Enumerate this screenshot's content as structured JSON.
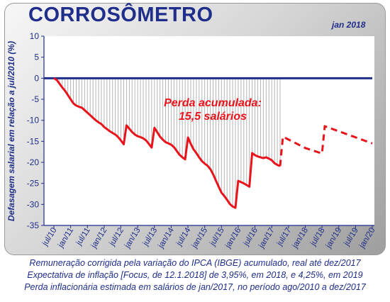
{
  "header": {
    "title": "CORROSÔMETRO",
    "date": "jan 2018"
  },
  "captions": [
    "Remuneração corrigida pela variação do IPCA (IBGE) acumulado, real até dez/2017",
    "Expectativa de inflação [Focus, de 12.1.2018] de 3,95%, em 2018, e 4,25%, em 2019",
    "Perda inflacionária estimada em salários de jan/2017, no período ago/2010 a dez/2017"
  ],
  "chart_data": {
    "type": "line",
    "ylabel": "Defasagem salarial em relação a jul/2010 (%)",
    "xlabel": "",
    "ylim": [
      -35,
      10
    ],
    "yticks": [
      10,
      5,
      0,
      -5,
      -10,
      -15,
      -20,
      -25,
      -30,
      -35
    ],
    "xlim": [
      0,
      114
    ],
    "xticks": [
      {
        "pos": 0,
        "label": "jul/10"
      },
      {
        "pos": 6,
        "label": "jan/11"
      },
      {
        "pos": 12,
        "label": "jul/11"
      },
      {
        "pos": 18,
        "label": "jan/12"
      },
      {
        "pos": 24,
        "label": "jul/12"
      },
      {
        "pos": 30,
        "label": "jan/13"
      },
      {
        "pos": 36,
        "label": "jul/13"
      },
      {
        "pos": 42,
        "label": "jan/14"
      },
      {
        "pos": 48,
        "label": "jul/14"
      },
      {
        "pos": 54,
        "label": "jan/15"
      },
      {
        "pos": 60,
        "label": "jul/15"
      },
      {
        "pos": 66,
        "label": "jan/16"
      },
      {
        "pos": 72,
        "label": "jul/16"
      },
      {
        "pos": 78,
        "label": "jan/17"
      },
      {
        "pos": 84,
        "label": "jul/17"
      },
      {
        "pos": 90,
        "label": "jan/18"
      },
      {
        "pos": 96,
        "label": "jul/18"
      },
      {
        "pos": 102,
        "label": "jan/19"
      },
      {
        "pos": 108,
        "label": "jul/19"
      },
      {
        "pos": 114,
        "label": "jan/20"
      }
    ],
    "grid": false,
    "annotation": {
      "line1": "Perda acumulada:",
      "line2": "15,5 salários",
      "color": "#e8141c"
    },
    "zero_line_color": "#1f2e8a",
    "hatch_color": "#b4b4b4",
    "series": [
      {
        "style": "solid",
        "color": "#e8141c",
        "points": [
          [
            0,
            0
          ],
          [
            1,
            -0.4
          ],
          [
            2,
            -1.3
          ],
          [
            3,
            -2.2
          ],
          [
            4,
            -3.0
          ],
          [
            5,
            -4.0
          ],
          [
            6,
            -5.0
          ],
          [
            7,
            -6.0
          ],
          [
            8,
            -6.5
          ],
          [
            9,
            -6.8
          ],
          [
            10,
            -7.0
          ],
          [
            11,
            -7.6
          ],
          [
            12,
            -8.2
          ],
          [
            13,
            -8.8
          ],
          [
            14,
            -9.4
          ],
          [
            15,
            -10.0
          ],
          [
            16,
            -10.5
          ],
          [
            17,
            -10.9
          ],
          [
            18,
            -11.6
          ],
          [
            19,
            -12.1
          ],
          [
            20,
            -12.6
          ],
          [
            21,
            -13.0
          ],
          [
            22,
            -13.4
          ],
          [
            23,
            -14.0
          ],
          [
            24,
            -14.8
          ],
          [
            25,
            -15.7
          ],
          [
            26,
            -11.2
          ],
          [
            27,
            -12.0
          ],
          [
            28,
            -12.8
          ],
          [
            29,
            -13.4
          ],
          [
            30,
            -13.8
          ],
          [
            31,
            -14.0
          ],
          [
            32,
            -14.3
          ],
          [
            33,
            -14.8
          ],
          [
            34,
            -15.6
          ],
          [
            35,
            -16.5
          ],
          [
            36,
            -11.8
          ],
          [
            37,
            -12.8
          ],
          [
            38,
            -13.9
          ],
          [
            39,
            -14.6
          ],
          [
            40,
            -15.2
          ],
          [
            41,
            -15.5
          ],
          [
            42,
            -15.8
          ],
          [
            43,
            -16.4
          ],
          [
            44,
            -17.3
          ],
          [
            45,
            -18.2
          ],
          [
            46,
            -18.8
          ],
          [
            47,
            -19.3
          ],
          [
            48,
            -14.1
          ],
          [
            49,
            -15.6
          ],
          [
            50,
            -16.9
          ],
          [
            51,
            -17.8
          ],
          [
            52,
            -18.8
          ],
          [
            53,
            -19.7
          ],
          [
            54,
            -20.3
          ],
          [
            55,
            -20.8
          ],
          [
            56,
            -21.6
          ],
          [
            57,
            -22.8
          ],
          [
            58,
            -24.3
          ],
          [
            59,
            -25.8
          ],
          [
            60,
            -27.2
          ],
          [
            61,
            -28.0
          ],
          [
            62,
            -28.9
          ],
          [
            63,
            -29.9
          ],
          [
            64,
            -30.5
          ],
          [
            65,
            -30.8
          ],
          [
            66,
            -24.4
          ],
          [
            67,
            -24.7
          ],
          [
            68,
            -25.0
          ],
          [
            69,
            -25.4
          ],
          [
            70,
            -25.8
          ],
          [
            71,
            -17.8
          ],
          [
            72,
            -18.3
          ],
          [
            73,
            -18.6
          ],
          [
            74,
            -18.8
          ],
          [
            75,
            -19.0
          ],
          [
            76,
            -18.8
          ],
          [
            77,
            -19.1
          ],
          [
            78,
            -19.5
          ],
          [
            79,
            -20.2
          ],
          [
            80,
            -20.6
          ],
          [
            81,
            -20.9
          ]
        ]
      },
      {
        "style": "dashed",
        "color": "#e8141c",
        "points": [
          [
            81,
            -20.9
          ],
          [
            82,
            -13.9
          ],
          [
            90,
            -16.6
          ],
          [
            96,
            -17.9
          ],
          [
            97,
            -11.4
          ],
          [
            114,
            -15.5
          ]
        ]
      }
    ]
  }
}
